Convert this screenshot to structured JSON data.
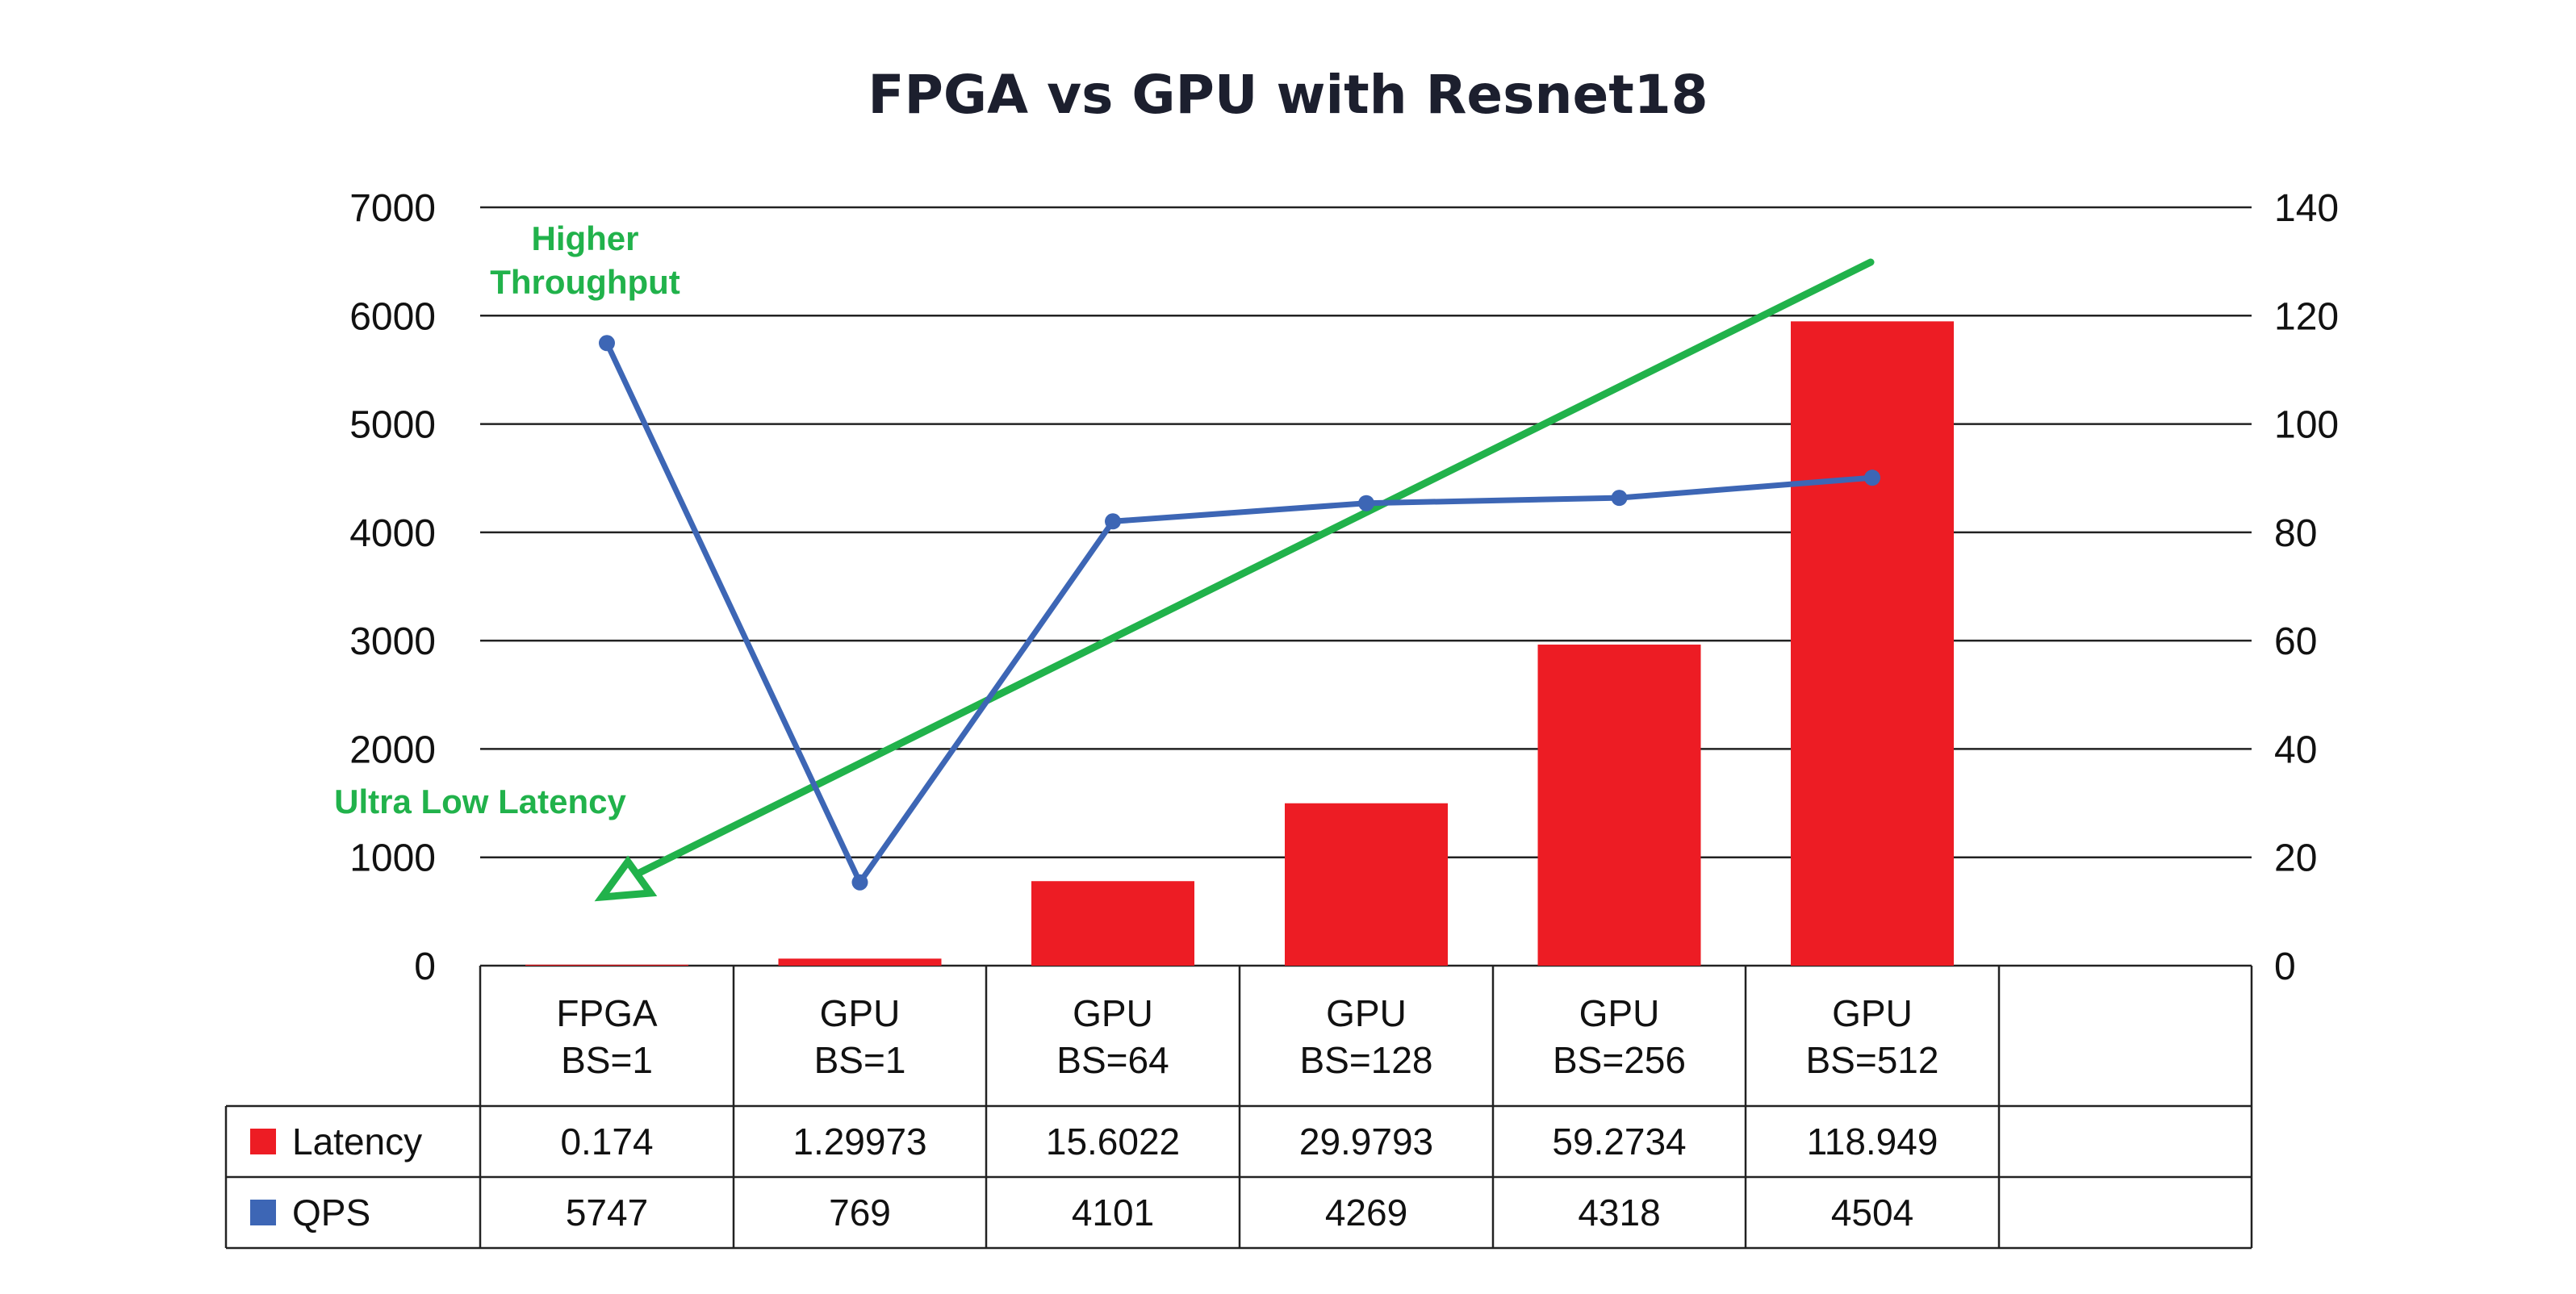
{
  "chart_data": {
    "type": "bar",
    "title": "FPGA vs GPU with Resnet18",
    "categories": [
      {
        "line1": "FPGA",
        "line2": "BS=1"
      },
      {
        "line1": "GPU",
        "line2": "BS=1"
      },
      {
        "line1": "GPU",
        "line2": "BS=64"
      },
      {
        "line1": "GPU",
        "line2": "BS=128"
      },
      {
        "line1": "GPU",
        "line2": "BS=256"
      },
      {
        "line1": "GPU",
        "line2": "BS=512"
      }
    ],
    "left_axis": {
      "ylim": [
        0,
        7000
      ],
      "ticks": [
        "0",
        "1000",
        "2000",
        "3000",
        "4000",
        "5000",
        "6000",
        "7000"
      ]
    },
    "right_axis": {
      "ylim": [
        0,
        140
      ],
      "ticks": [
        "0",
        "20",
        "40",
        "60",
        "80",
        "100",
        "120",
        "140"
      ]
    },
    "series": [
      {
        "name": "Latency",
        "type": "bar",
        "axis": "right",
        "color": "#ed1c24",
        "values": [
          0.174,
          1.29973,
          15.6022,
          29.9793,
          59.2734,
          118.949
        ],
        "labels": [
          "0.174",
          "1.29973",
          "15.6022",
          "29.9793",
          "59.2734",
          "118.949"
        ]
      },
      {
        "name": "QPS",
        "type": "line",
        "axis": "left",
        "color": "#3d66b5",
        "values": [
          5747,
          769,
          4101,
          4269,
          4318,
          4504
        ],
        "labels": [
          "5747",
          "769",
          "4101",
          "4269",
          "4318",
          "4504"
        ]
      }
    ],
    "annotations": [
      {
        "text_line1": "Higher",
        "text_line2": "Throughput",
        "color": "#21b24b"
      },
      {
        "text": "Ultra Low Latency",
        "color": "#21b24b"
      }
    ],
    "grid": true,
    "legend": "table below chart"
  }
}
